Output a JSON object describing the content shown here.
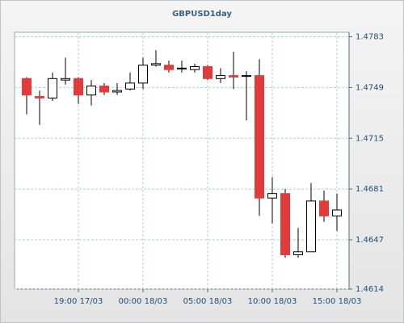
{
  "chart_data": {
    "type": "candlestick",
    "title": "GBPUSD1day",
    "categories": [
      null,
      null,
      null,
      null,
      "19:00 17/03",
      null,
      null,
      null,
      null,
      "00:00 18/03",
      null,
      null,
      null,
      null,
      "05:00 18/03",
      null,
      null,
      null,
      null,
      "10:00 18/03",
      null,
      null,
      null,
      null,
      "15:00 18/03"
    ],
    "open": [
      1.4755,
      1.4743,
      1.4742,
      1.4754,
      1.4755,
      1.4744,
      1.475,
      1.4746,
      1.4748,
      1.4752,
      1.4764,
      1.4764,
      1.4762,
      1.4761,
      1.4763,
      1.4755,
      1.4757,
      1.4757,
      1.4757,
      1.4675,
      1.4678,
      1.4637,
      1.4639,
      1.4673,
      1.4663
    ],
    "high": [
      1.4756,
      1.4747,
      1.4759,
      1.4769,
      1.4756,
      1.4754,
      1.4752,
      1.4752,
      1.4759,
      1.4769,
      1.4774,
      1.4767,
      1.4767,
      1.4765,
      1.4764,
      1.4762,
      1.4773,
      1.476,
      1.4768,
      1.4689,
      1.4681,
      1.4655,
      1.4685,
      1.468,
      1.4678
    ],
    "low": [
      1.4731,
      1.4724,
      1.474,
      1.4751,
      1.4738,
      1.4737,
      1.4744,
      1.4744,
      1.4747,
      1.4748,
      1.4763,
      1.4759,
      1.4759,
      1.4759,
      1.4754,
      1.4752,
      1.4748,
      1.4727,
      1.4663,
      1.4658,
      1.4635,
      1.4635,
      1.4639,
      1.4659,
      1.4653
    ],
    "close": [
      1.4744,
      1.4742,
      1.4755,
      1.4755,
      1.4744,
      1.475,
      1.4746,
      1.4747,
      1.4752,
      1.4764,
      1.4765,
      1.4761,
      1.4762,
      1.4763,
      1.4755,
      1.4757,
      1.4756,
      1.4757,
      1.4675,
      1.4678,
      1.4637,
      1.4639,
      1.4673,
      1.4663,
      1.4667
    ],
    "up_color": "#ffffff",
    "down_color": "#e03c3c",
    "ylim": [
      1.4614,
      1.4786
    ],
    "yticks": [
      1.4614,
      1.4647,
      1.4681,
      1.4715,
      1.4749,
      1.4783
    ],
    "grid": true
  }
}
